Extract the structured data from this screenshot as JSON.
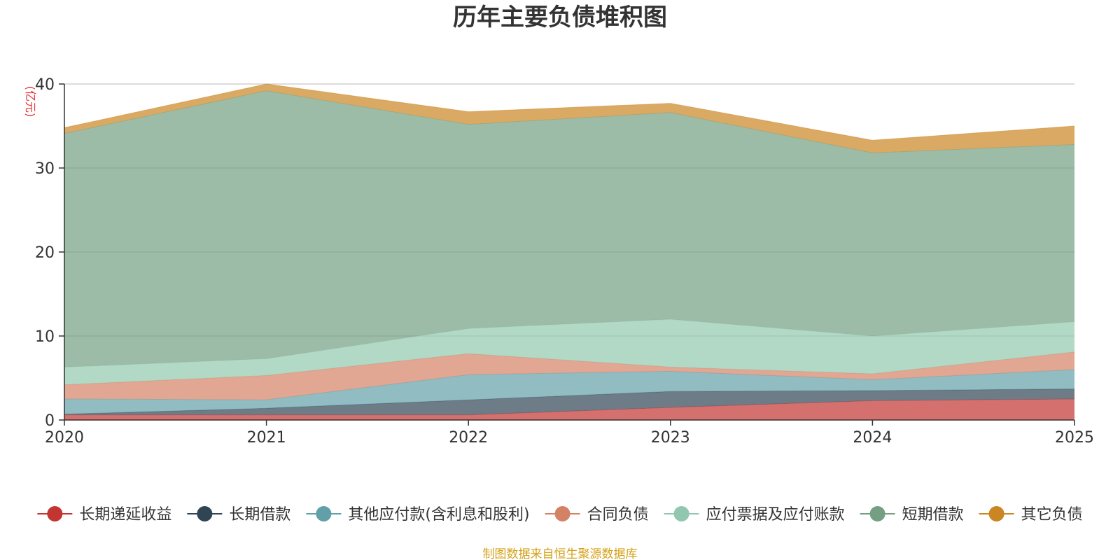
{
  "chart_data": {
    "type": "area",
    "stacked": true,
    "title": "历年主要负债堆积图",
    "unit_label": "(亿元)",
    "x": [
      "2020",
      "2021",
      "2022",
      "2023",
      "2024",
      "2025"
    ],
    "ylim": [
      0,
      40
    ],
    "yticks": [
      "0",
      "10",
      "20",
      "30",
      "40"
    ],
    "series": [
      {
        "name": "长期递延收益",
        "color": "#c23531",
        "values": [
          0.6,
          0.6,
          0.6,
          1.5,
          2.3,
          2.5
        ]
      },
      {
        "name": "长期借款",
        "color": "#2f4554",
        "values": [
          0.1,
          0.8,
          1.8,
          1.9,
          1.2,
          1.2
        ]
      },
      {
        "name": "其他应付款(含利息和股利)",
        "color": "#61a0a8",
        "values": [
          1.8,
          1.0,
          3.0,
          2.4,
          1.3,
          2.3
        ]
      },
      {
        "name": "合同负债",
        "color": "#d48265",
        "values": [
          1.7,
          2.9,
          2.5,
          0.5,
          0.7,
          2.1
        ]
      },
      {
        "name": "应付票据及应付账款",
        "color": "#91c7ae",
        "values": [
          2.1,
          2.0,
          3.0,
          5.7,
          4.5,
          3.6
        ]
      },
      {
        "name": "短期借款",
        "color": "#749f83",
        "values": [
          27.8,
          31.9,
          24.3,
          24.6,
          21.8,
          21.1
        ]
      },
      {
        "name": "其它负债",
        "color": "#ca8622",
        "values": [
          0.7,
          0.8,
          1.5,
          1.1,
          1.5,
          2.2
        ]
      }
    ],
    "legend_position": "bottom",
    "source_note": "制图数据来自恒生聚源数据库"
  }
}
